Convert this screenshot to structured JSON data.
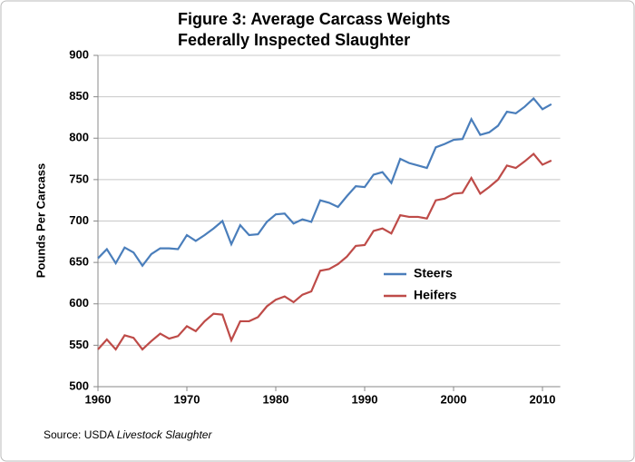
{
  "chart_data": {
    "type": "line",
    "title": "Figure 3: Average Carcass Weights",
    "subtitle": "Federally Inspected Slaughter",
    "y_label": "Pounds Per Carcass",
    "source_prefix": "Source:  USDA",
    "source_italic": "Livestock Slaughter",
    "x": [
      1960,
      1961,
      1962,
      1963,
      1964,
      1965,
      1966,
      1967,
      1968,
      1969,
      1970,
      1971,
      1972,
      1973,
      1974,
      1975,
      1976,
      1977,
      1978,
      1979,
      1980,
      1981,
      1982,
      1983,
      1984,
      1985,
      1986,
      1987,
      1988,
      1989,
      1990,
      1991,
      1992,
      1993,
      1994,
      1995,
      1996,
      1997,
      1998,
      1999,
      2000,
      2001,
      2002,
      2003,
      2004,
      2005,
      2006,
      2007,
      2008,
      2009,
      2010,
      2011
    ],
    "series": [
      {
        "name": "Steers",
        "color": "#4a7ebb",
        "values": [
          655,
          666,
          649,
          668,
          662,
          646,
          660,
          667,
          667,
          666,
          683,
          676,
          683,
          691,
          700,
          672,
          695,
          683,
          684,
          699,
          708,
          709,
          697,
          702,
          699,
          725,
          722,
          717,
          730,
          742,
          741,
          756,
          759,
          746,
          775,
          770,
          767,
          764,
          789,
          793,
          798,
          799,
          823,
          804,
          807,
          815,
          832,
          830,
          838,
          848,
          835,
          841
        ]
      },
      {
        "name": "Heifers",
        "color": "#be4b48",
        "values": [
          545,
          557,
          545,
          562,
          559,
          545,
          555,
          564,
          558,
          561,
          573,
          567,
          579,
          588,
          587,
          556,
          579,
          579,
          584,
          597,
          605,
          609,
          602,
          611,
          615,
          640,
          642,
          648,
          657,
          670,
          671,
          688,
          691,
          685,
          707,
          705,
          705,
          703,
          725,
          727,
          733,
          734,
          752,
          733,
          741,
          750,
          767,
          764,
          772,
          781,
          768,
          773
        ]
      }
    ],
    "xlim": [
      1960,
      2012
    ],
    "xticks": [
      1960,
      1970,
      1980,
      1990,
      2000,
      2010
    ],
    "ylim": [
      500,
      900
    ],
    "yticks": [
      500,
      550,
      600,
      650,
      700,
      750,
      800,
      850,
      900
    ],
    "grid": true,
    "legend": "right"
  }
}
